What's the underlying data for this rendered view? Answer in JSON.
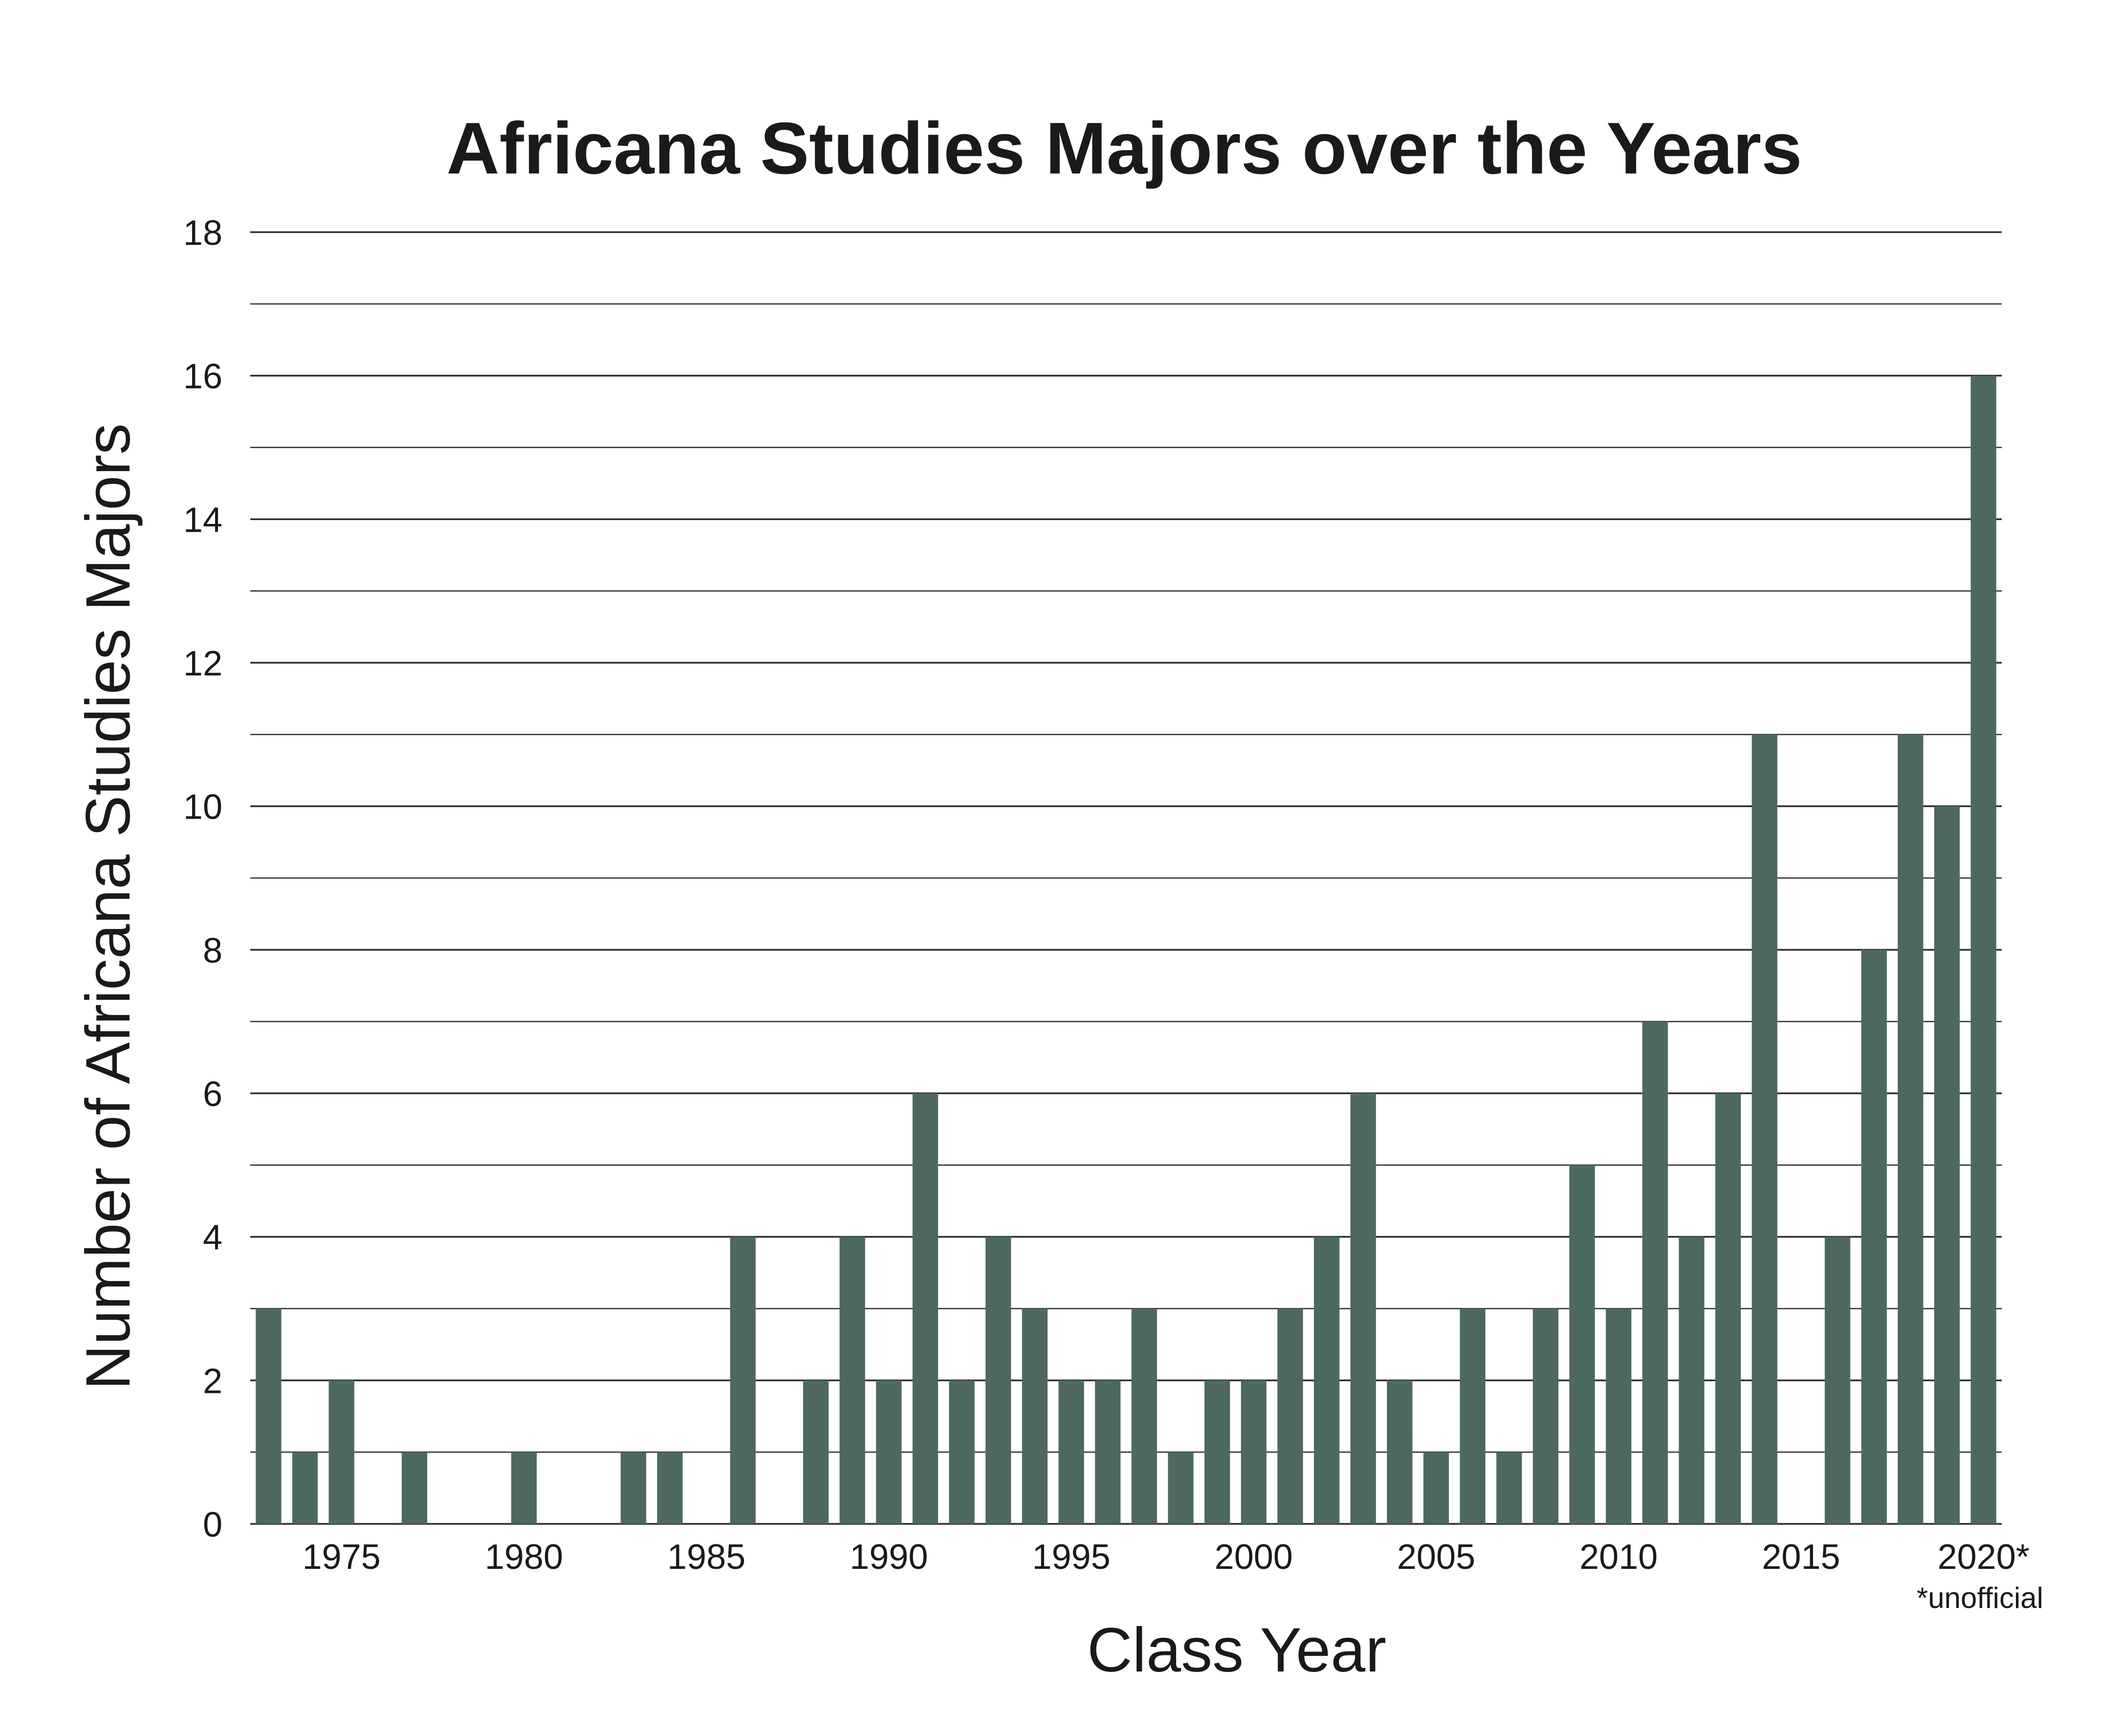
{
  "chart_data": {
    "type": "bar",
    "title": "Africana Studies Majors over the Years",
    "xlabel": "Class Year",
    "ylabel": "Number of Africana Studies Majors",
    "ylim": [
      0,
      18
    ],
    "y_major_step": 2,
    "y_minor_step": 1,
    "grid": true,
    "bar_color": "#4d695d",
    "x": [
      1973,
      1974,
      1975,
      1976,
      1977,
      1978,
      1979,
      1980,
      1981,
      1982,
      1983,
      1984,
      1985,
      1986,
      1987,
      1988,
      1989,
      1990,
      1991,
      1992,
      1993,
      1994,
      1995,
      1996,
      1997,
      1998,
      1999,
      2000,
      2001,
      2002,
      2003,
      2004,
      2005,
      2006,
      2007,
      2008,
      2009,
      2010,
      2011,
      2012,
      2013,
      2014,
      2015,
      2016,
      2017,
      2018,
      2019,
      2020
    ],
    "values": [
      3,
      1,
      2,
      0,
      1,
      0,
      0,
      1,
      0,
      0,
      1,
      1,
      0,
      4,
      0,
      2,
      4,
      2,
      6,
      2,
      4,
      3,
      2,
      2,
      3,
      1,
      2,
      2,
      3,
      4,
      6,
      2,
      1,
      3,
      1,
      3,
      5,
      3,
      7,
      4,
      6,
      11,
      0,
      4,
      8,
      11,
      10,
      16
    ],
    "x_tick_labels": [
      {
        "year": 1975,
        "label": "1975"
      },
      {
        "year": 1980,
        "label": "1980"
      },
      {
        "year": 1985,
        "label": "1985"
      },
      {
        "year": 1990,
        "label": "1990"
      },
      {
        "year": 1995,
        "label": "1995"
      },
      {
        "year": 2000,
        "label": "2000"
      },
      {
        "year": 2005,
        "label": "2005"
      },
      {
        "year": 2010,
        "label": "2010"
      },
      {
        "year": 2015,
        "label": "2015"
      },
      {
        "year": 2020,
        "label": "2020*"
      }
    ],
    "y_tick_labels": [
      "0",
      "2",
      "4",
      "6",
      "8",
      "10",
      "12",
      "14",
      "16",
      "18"
    ],
    "footnote": "*unofficial"
  }
}
